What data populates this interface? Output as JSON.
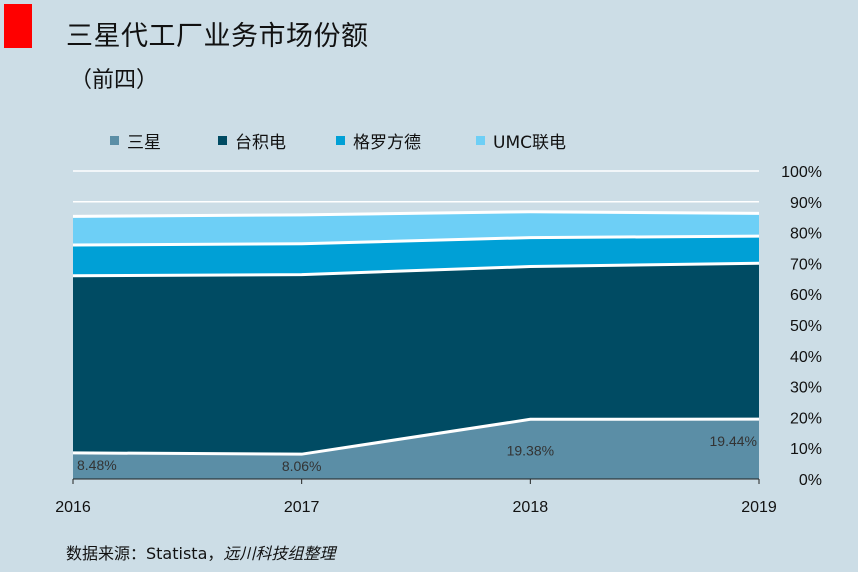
{
  "title": "三星代工厂业务市场份额",
  "subtitle": "（前四）",
  "source": {
    "prefix": "数据来源：Statista，",
    "suffix": "远川科技组整理"
  },
  "chart_data": {
    "type": "area",
    "stacked": true,
    "x": [
      "2016",
      "2017",
      "2018",
      "2019"
    ],
    "ylim": [
      0,
      100
    ],
    "yticks": [
      "0%",
      "10%",
      "20%",
      "30%",
      "40%",
      "50%",
      "60%",
      "70%",
      "80%",
      "90%",
      "100%"
    ],
    "y_axis_position": "right",
    "legend_position": "top",
    "series": [
      {
        "name": "三星",
        "color": "#5b8ea6",
        "values": [
          8.48,
          8.06,
          19.38,
          19.44
        ],
        "data_labels": [
          "8.48%",
          "8.06%",
          "19.38%",
          "19.44%"
        ]
      },
      {
        "name": "台积电",
        "color": "#004b63",
        "values": [
          57.5,
          58.3,
          49.6,
          50.6
        ]
      },
      {
        "name": "格罗方德",
        "color": "#00a0d6",
        "values": [
          10.0,
          10.0,
          9.4,
          8.8
        ]
      },
      {
        "name": "UMC联电",
        "color": "#6dcff6",
        "values": [
          9.3,
          9.4,
          8.4,
          7.4
        ]
      }
    ]
  }
}
